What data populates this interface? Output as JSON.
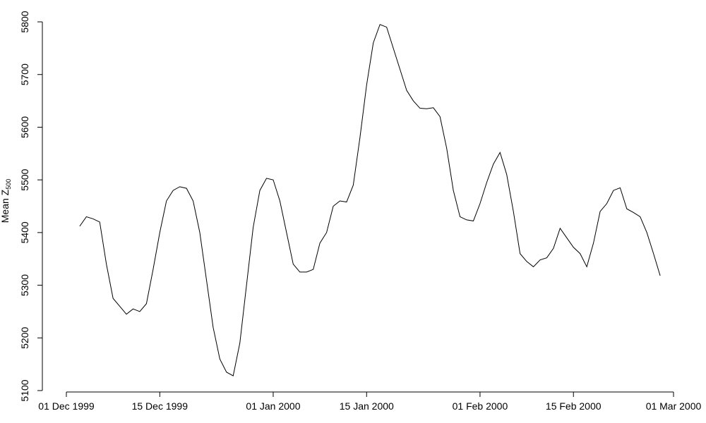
{
  "chart_data": {
    "type": "line",
    "y_label": "Mean Z",
    "y_label_subscript": "500",
    "x": [
      "1999-12-03",
      "1999-12-04",
      "1999-12-05",
      "1999-12-06",
      "1999-12-07",
      "1999-12-08",
      "1999-12-09",
      "1999-12-10",
      "1999-12-11",
      "1999-12-12",
      "1999-12-13",
      "1999-12-14",
      "1999-12-15",
      "1999-12-16",
      "1999-12-17",
      "1999-12-18",
      "1999-12-19",
      "1999-12-20",
      "1999-12-21",
      "1999-12-22",
      "1999-12-23",
      "1999-12-24",
      "1999-12-25",
      "1999-12-26",
      "1999-12-27",
      "1999-12-28",
      "1999-12-29",
      "1999-12-30",
      "1999-12-31",
      "2000-01-01",
      "2000-01-02",
      "2000-01-03",
      "2000-01-04",
      "2000-01-05",
      "2000-01-06",
      "2000-01-07",
      "2000-01-08",
      "2000-01-09",
      "2000-01-10",
      "2000-01-11",
      "2000-01-12",
      "2000-01-13",
      "2000-01-14",
      "2000-01-15",
      "2000-01-16",
      "2000-01-17",
      "2000-01-18",
      "2000-01-19",
      "2000-01-20",
      "2000-01-21",
      "2000-01-22",
      "2000-01-23",
      "2000-01-24",
      "2000-01-25",
      "2000-01-26",
      "2000-01-27",
      "2000-01-28",
      "2000-01-29",
      "2000-01-30",
      "2000-01-31",
      "2000-02-01",
      "2000-02-02",
      "2000-02-03",
      "2000-02-04",
      "2000-02-05",
      "2000-02-06",
      "2000-02-07",
      "2000-02-08",
      "2000-02-09",
      "2000-02-10",
      "2000-02-11",
      "2000-02-12",
      "2000-02-13",
      "2000-02-14",
      "2000-02-15",
      "2000-02-16",
      "2000-02-17",
      "2000-02-18",
      "2000-02-19",
      "2000-02-20",
      "2000-02-21",
      "2000-02-22",
      "2000-02-23",
      "2000-02-24",
      "2000-02-25",
      "2000-02-26",
      "2000-02-27",
      "2000-02-28"
    ],
    "series": [
      {
        "color": "#000000",
        "values": [
          5412,
          5430,
          5426,
          5420,
          5340,
          5275,
          5260,
          5245,
          5255,
          5250,
          5265,
          5330,
          5400,
          5460,
          5480,
          5487,
          5484,
          5460,
          5400,
          5310,
          5220,
          5160,
          5135,
          5128,
          5190,
          5300,
          5410,
          5480,
          5503,
          5500,
          5460,
          5400,
          5340,
          5325,
          5325,
          5330,
          5380,
          5400,
          5450,
          5460,
          5458,
          5490,
          5580,
          5680,
          5760,
          5795,
          5790,
          5750,
          5710,
          5670,
          5650,
          5636,
          5635,
          5637,
          5620,
          5560,
          5480,
          5430,
          5424,
          5422,
          5455,
          5495,
          5530,
          5552,
          5510,
          5440,
          5360,
          5345,
          5335,
          5348,
          5352,
          5370,
          5408,
          5390,
          5372,
          5360,
          5335,
          5380,
          5440,
          5455,
          5480,
          5485,
          5445,
          5438,
          5430,
          5400,
          5360,
          5318
        ]
      }
    ],
    "xlim": [
      "1999-12-01",
      "2000-03-01"
    ],
    "xticks": [
      {
        "value": "1999-12-01",
        "label": "01 Dec 1999"
      },
      {
        "value": "1999-12-15",
        "label": "15 Dec 1999"
      },
      {
        "value": "2000-01-01",
        "label": "01 Jan 2000"
      },
      {
        "value": "2000-01-15",
        "label": "15 Jan 2000"
      },
      {
        "value": "2000-02-01",
        "label": "01 Feb 2000"
      },
      {
        "value": "2000-02-15",
        "label": "15 Feb 2000"
      },
      {
        "value": "2000-03-01",
        "label": "01 Mar 2000"
      }
    ],
    "ylim": [
      5100,
      5800
    ],
    "yticks": [
      5100,
      5200,
      5300,
      5400,
      5500,
      5600,
      5700,
      5800
    ]
  }
}
